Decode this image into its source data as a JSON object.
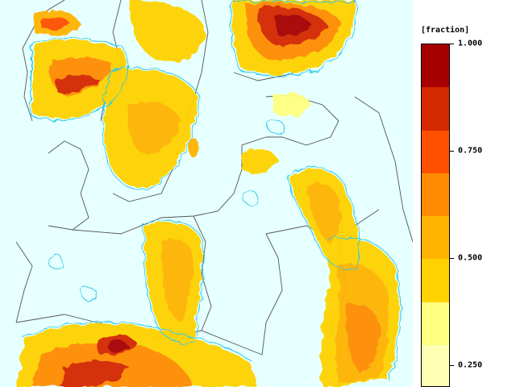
{
  "legend": {
    "unit_label": "[fraction]",
    "ticks": [
      {
        "value": 1.0,
        "label": "1.000"
      },
      {
        "value": 0.75,
        "label": "0.750"
      },
      {
        "value": 0.5,
        "label": "0.500"
      },
      {
        "value": 0.25,
        "label": "0.250"
      }
    ],
    "scale_min": 0.2,
    "scale_max": 1.0,
    "classes": [
      {
        "lower": 0.9,
        "color": "#a60000"
      },
      {
        "lower": 0.8,
        "color": "#d42800"
      },
      {
        "lower": 0.7,
        "color": "#ff5000"
      },
      {
        "lower": 0.6,
        "color": "#ff8c00"
      },
      {
        "lower": 0.5,
        "color": "#ffb400"
      },
      {
        "lower": 0.4,
        "color": "#ffd200"
      },
      {
        "lower": 0.3,
        "color": "#ffff80"
      },
      {
        "lower": 0.2,
        "color": "#ffffb4"
      }
    ]
  },
  "map": {
    "background_color": "#e6ffff",
    "boundary_color": "#555555",
    "contour_color": "#30c8e8"
  }
}
